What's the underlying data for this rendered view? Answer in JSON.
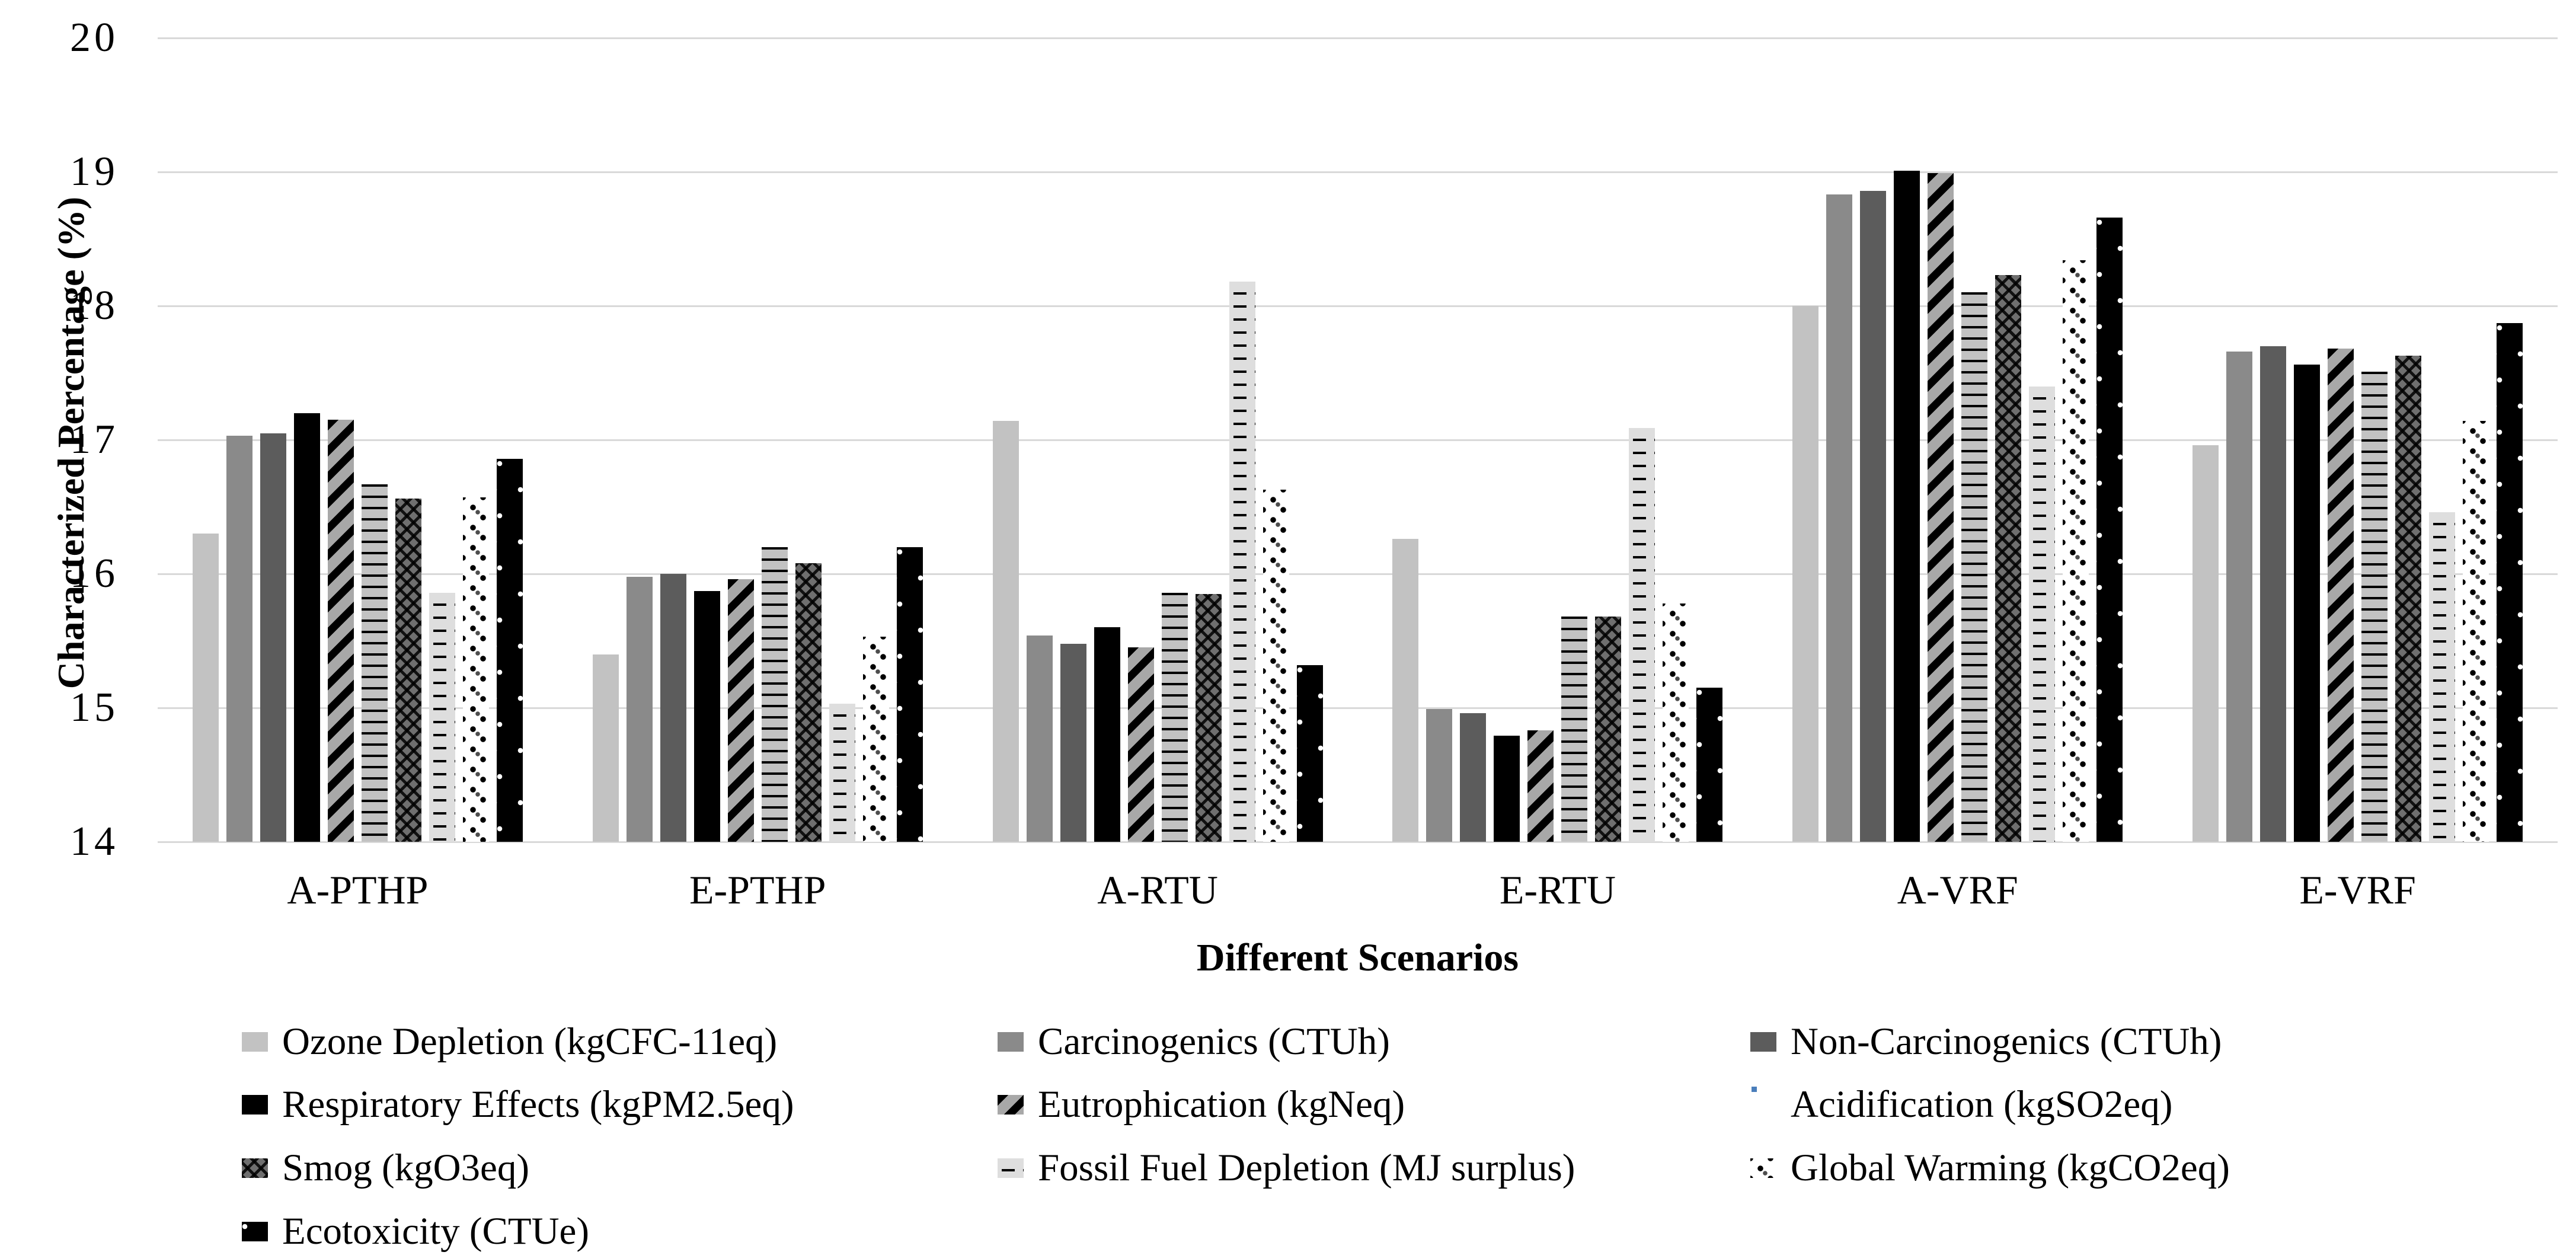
{
  "chart_data": {
    "type": "bar",
    "title": "",
    "xlabel": "Different Scenarios",
    "ylabel": "Characterized Percentage (%)",
    "ylim": [
      14,
      20
    ],
    "yticks": [
      20,
      19,
      18,
      17,
      16,
      15,
      14
    ],
    "grid": true,
    "legend_position": "bottom",
    "categories": [
      "A-PTHP",
      "E-PTHP",
      "A-RTU",
      "E-RTU",
      "A-VRF",
      "E-VRF"
    ],
    "series": [
      {
        "key": "ozone-depletion",
        "name": "Ozone Depletion (kgCFC-11eq)",
        "fill": "solid light gray",
        "color": "#c2c2c2",
        "values": [
          16.3,
          15.4,
          17.14,
          16.26,
          18.0,
          16.96
        ]
      },
      {
        "key": "carcinogenics",
        "name": "Carcinogenics (CTUh)",
        "fill": "solid medium gray",
        "color": "#8a8a8a",
        "values": [
          17.03,
          15.98,
          15.54,
          14.99,
          18.83,
          17.66
        ]
      },
      {
        "key": "non-carcinogenics",
        "name": "Non-Carcinogenics (CTUh)",
        "fill": "solid dark gray",
        "color": "#5c5c5c",
        "values": [
          17.05,
          16.0,
          15.48,
          14.96,
          18.86,
          17.7
        ]
      },
      {
        "key": "respiratory-effects",
        "name": "Respiratory Effects (kgPM2.5eq)",
        "fill": "solid black",
        "color": "#000000",
        "values": [
          17.2,
          15.87,
          15.6,
          14.79,
          19.01,
          17.56
        ]
      },
      {
        "key": "eutrophication",
        "name": "Eutrophication (kgNeq)",
        "fill": "black diagonal stripes on gray",
        "color": "#a8a8a8",
        "values": [
          17.15,
          15.96,
          15.45,
          14.83,
          18.99,
          17.68
        ]
      },
      {
        "key": "acidification",
        "name": "Acidification (kgSO2eq)",
        "fill": "black horizontal lines on light gray",
        "color": "#c2c2c2",
        "values": [
          16.67,
          16.2,
          15.86,
          15.68,
          18.1,
          17.51
        ]
      },
      {
        "key": "smog",
        "name": "Smog (kgO3eq)",
        "fill": "black zigzag weave on dark gray",
        "color": "#6f6f6f",
        "values": [
          16.56,
          16.08,
          15.85,
          15.68,
          18.23,
          17.63
        ]
      },
      {
        "key": "fossil-fuel-depletion",
        "name": "Fossil Fuel Depletion (MJ surplus)",
        "fill": "staggered black dashes on pale gray",
        "color": "#dedede",
        "values": [
          15.86,
          15.03,
          18.18,
          17.09,
          17.4,
          16.46
        ]
      },
      {
        "key": "global-warming",
        "name": "Global Warming (kgCO2eq)",
        "fill": "black dotted checker on white",
        "color": "#ffffff",
        "values": [
          16.57,
          15.53,
          16.63,
          15.78,
          18.34,
          17.14
        ]
      },
      {
        "key": "ecotoxicity",
        "name": "Ecotoxicity (CTUe)",
        "fill": "white dots on black",
        "color": "#000000",
        "values": [
          16.86,
          16.2,
          15.32,
          15.15,
          18.66,
          17.87
        ]
      }
    ]
  },
  "colors": {
    "background": "#ffffff",
    "gridline": "#d9d9d9",
    "text": "#000000",
    "legend_acidification_dot": "#4a7ebb"
  },
  "layout_note": "grouped bar chart, 6 scenario groups x 10 impact-category series, legend in 3 columns below plot"
}
